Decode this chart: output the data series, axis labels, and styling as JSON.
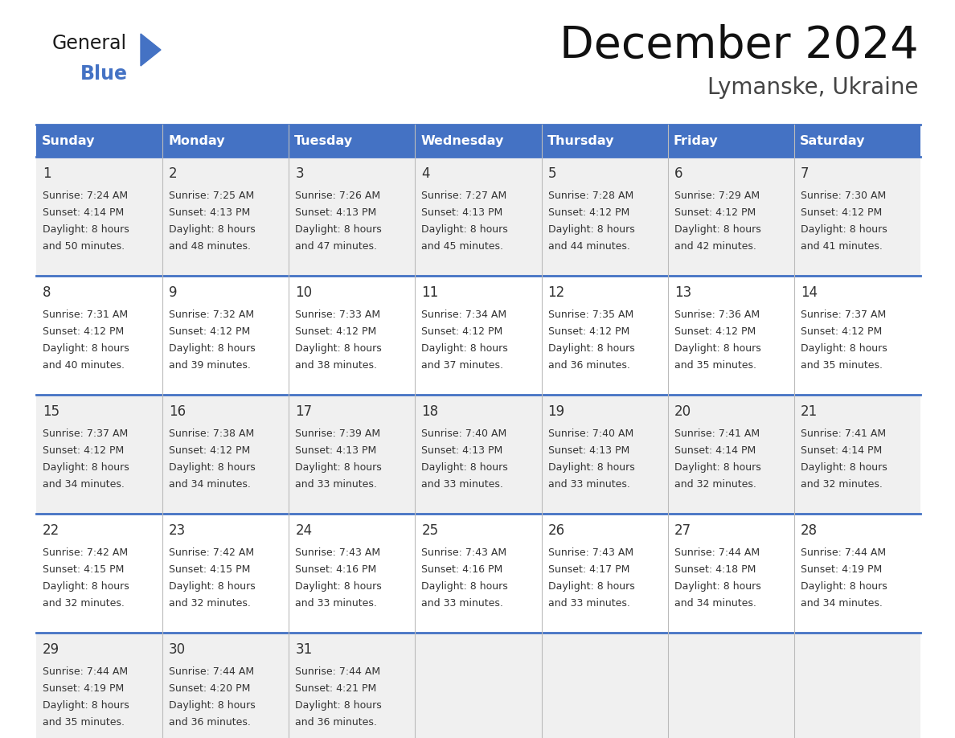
{
  "title": "December 2024",
  "subtitle": "Lymanske, Ukraine",
  "header_color": "#4472C4",
  "header_text_color": "#FFFFFF",
  "day_names": [
    "Sunday",
    "Monday",
    "Tuesday",
    "Wednesday",
    "Thursday",
    "Friday",
    "Saturday"
  ],
  "background_color": "#FFFFFF",
  "cell_bg_color": "#F0F0F0",
  "cell_alt_bg_color": "#FFFFFF",
  "grid_line_color": "#4472C4",
  "days": [
    {
      "date": 1,
      "col": 0,
      "row": 0,
      "sunrise": "7:24 AM",
      "sunset": "4:14 PM",
      "daylight_h": "8 hours",
      "daylight_m": "50 minutes"
    },
    {
      "date": 2,
      "col": 1,
      "row": 0,
      "sunrise": "7:25 AM",
      "sunset": "4:13 PM",
      "daylight_h": "8 hours",
      "daylight_m": "48 minutes"
    },
    {
      "date": 3,
      "col": 2,
      "row": 0,
      "sunrise": "7:26 AM",
      "sunset": "4:13 PM",
      "daylight_h": "8 hours",
      "daylight_m": "47 minutes"
    },
    {
      "date": 4,
      "col": 3,
      "row": 0,
      "sunrise": "7:27 AM",
      "sunset": "4:13 PM",
      "daylight_h": "8 hours",
      "daylight_m": "45 minutes"
    },
    {
      "date": 5,
      "col": 4,
      "row": 0,
      "sunrise": "7:28 AM",
      "sunset": "4:12 PM",
      "daylight_h": "8 hours",
      "daylight_m": "44 minutes"
    },
    {
      "date": 6,
      "col": 5,
      "row": 0,
      "sunrise": "7:29 AM",
      "sunset": "4:12 PM",
      "daylight_h": "8 hours",
      "daylight_m": "42 minutes"
    },
    {
      "date": 7,
      "col": 6,
      "row": 0,
      "sunrise": "7:30 AM",
      "sunset": "4:12 PM",
      "daylight_h": "8 hours",
      "daylight_m": "41 minutes"
    },
    {
      "date": 8,
      "col": 0,
      "row": 1,
      "sunrise": "7:31 AM",
      "sunset": "4:12 PM",
      "daylight_h": "8 hours",
      "daylight_m": "40 minutes"
    },
    {
      "date": 9,
      "col": 1,
      "row": 1,
      "sunrise": "7:32 AM",
      "sunset": "4:12 PM",
      "daylight_h": "8 hours",
      "daylight_m": "39 minutes"
    },
    {
      "date": 10,
      "col": 2,
      "row": 1,
      "sunrise": "7:33 AM",
      "sunset": "4:12 PM",
      "daylight_h": "8 hours",
      "daylight_m": "38 minutes"
    },
    {
      "date": 11,
      "col": 3,
      "row": 1,
      "sunrise": "7:34 AM",
      "sunset": "4:12 PM",
      "daylight_h": "8 hours",
      "daylight_m": "37 minutes"
    },
    {
      "date": 12,
      "col": 4,
      "row": 1,
      "sunrise": "7:35 AM",
      "sunset": "4:12 PM",
      "daylight_h": "8 hours",
      "daylight_m": "36 minutes"
    },
    {
      "date": 13,
      "col": 5,
      "row": 1,
      "sunrise": "7:36 AM",
      "sunset": "4:12 PM",
      "daylight_h": "8 hours",
      "daylight_m": "35 minutes"
    },
    {
      "date": 14,
      "col": 6,
      "row": 1,
      "sunrise": "7:37 AM",
      "sunset": "4:12 PM",
      "daylight_h": "8 hours",
      "daylight_m": "35 minutes"
    },
    {
      "date": 15,
      "col": 0,
      "row": 2,
      "sunrise": "7:37 AM",
      "sunset": "4:12 PM",
      "daylight_h": "8 hours",
      "daylight_m": "34 minutes"
    },
    {
      "date": 16,
      "col": 1,
      "row": 2,
      "sunrise": "7:38 AM",
      "sunset": "4:12 PM",
      "daylight_h": "8 hours",
      "daylight_m": "34 minutes"
    },
    {
      "date": 17,
      "col": 2,
      "row": 2,
      "sunrise": "7:39 AM",
      "sunset": "4:13 PM",
      "daylight_h": "8 hours",
      "daylight_m": "33 minutes"
    },
    {
      "date": 18,
      "col": 3,
      "row": 2,
      "sunrise": "7:40 AM",
      "sunset": "4:13 PM",
      "daylight_h": "8 hours",
      "daylight_m": "33 minutes"
    },
    {
      "date": 19,
      "col": 4,
      "row": 2,
      "sunrise": "7:40 AM",
      "sunset": "4:13 PM",
      "daylight_h": "8 hours",
      "daylight_m": "33 minutes"
    },
    {
      "date": 20,
      "col": 5,
      "row": 2,
      "sunrise": "7:41 AM",
      "sunset": "4:14 PM",
      "daylight_h": "8 hours",
      "daylight_m": "32 minutes"
    },
    {
      "date": 21,
      "col": 6,
      "row": 2,
      "sunrise": "7:41 AM",
      "sunset": "4:14 PM",
      "daylight_h": "8 hours",
      "daylight_m": "32 minutes"
    },
    {
      "date": 22,
      "col": 0,
      "row": 3,
      "sunrise": "7:42 AM",
      "sunset": "4:15 PM",
      "daylight_h": "8 hours",
      "daylight_m": "32 minutes"
    },
    {
      "date": 23,
      "col": 1,
      "row": 3,
      "sunrise": "7:42 AM",
      "sunset": "4:15 PM",
      "daylight_h": "8 hours",
      "daylight_m": "32 minutes"
    },
    {
      "date": 24,
      "col": 2,
      "row": 3,
      "sunrise": "7:43 AM",
      "sunset": "4:16 PM",
      "daylight_h": "8 hours",
      "daylight_m": "33 minutes"
    },
    {
      "date": 25,
      "col": 3,
      "row": 3,
      "sunrise": "7:43 AM",
      "sunset": "4:16 PM",
      "daylight_h": "8 hours",
      "daylight_m": "33 minutes"
    },
    {
      "date": 26,
      "col": 4,
      "row": 3,
      "sunrise": "7:43 AM",
      "sunset": "4:17 PM",
      "daylight_h": "8 hours",
      "daylight_m": "33 minutes"
    },
    {
      "date": 27,
      "col": 5,
      "row": 3,
      "sunrise": "7:44 AM",
      "sunset": "4:18 PM",
      "daylight_h": "8 hours",
      "daylight_m": "34 minutes"
    },
    {
      "date": 28,
      "col": 6,
      "row": 3,
      "sunrise": "7:44 AM",
      "sunset": "4:19 PM",
      "daylight_h": "8 hours",
      "daylight_m": "34 minutes"
    },
    {
      "date": 29,
      "col": 0,
      "row": 4,
      "sunrise": "7:44 AM",
      "sunset": "4:19 PM",
      "daylight_h": "8 hours",
      "daylight_m": "35 minutes"
    },
    {
      "date": 30,
      "col": 1,
      "row": 4,
      "sunrise": "7:44 AM",
      "sunset": "4:20 PM",
      "daylight_h": "8 hours",
      "daylight_m": "36 minutes"
    },
    {
      "date": 31,
      "col": 2,
      "row": 4,
      "sunrise": "7:44 AM",
      "sunset": "4:21 PM",
      "daylight_h": "8 hours",
      "daylight_m": "36 minutes"
    }
  ],
  "logo_general_color": "#1a1a1a",
  "logo_blue_color": "#4472C4",
  "logo_triangle_color": "#4472C4"
}
